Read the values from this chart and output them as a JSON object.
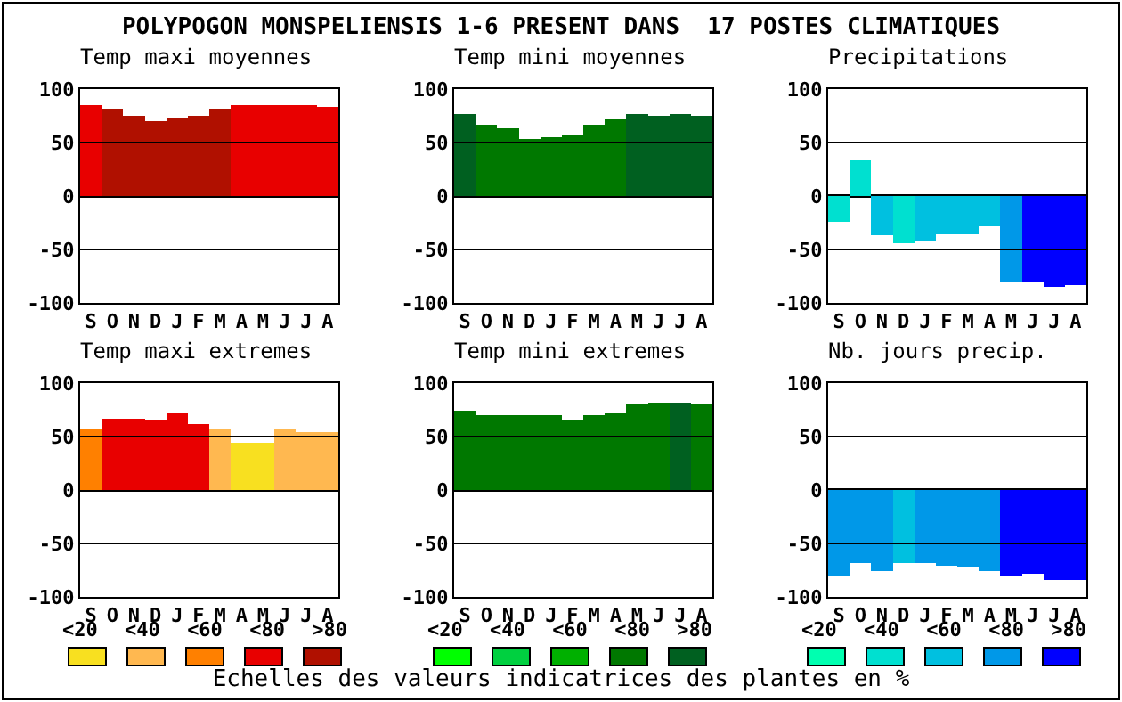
{
  "chart_data": [
    {
      "type": "bar",
      "title": "Temp maxi moyennes",
      "categories": [
        "S",
        "O",
        "N",
        "D",
        "J",
        "F",
        "M",
        "A",
        "M",
        "J",
        "J",
        "A"
      ],
      "values": [
        85,
        82,
        75,
        70,
        73,
        75,
        82,
        85,
        85,
        85,
        85,
        83
      ],
      "colors": [
        "#e80000",
        "#b01000",
        "#b01000",
        "#b01000",
        "#b01000",
        "#b01000",
        "#b01000",
        "#e80000",
        "#e80000",
        "#e80000",
        "#e80000",
        "#e80000"
      ],
      "ylim": [
        -100,
        100
      ],
      "yticks": [
        -100,
        -50,
        0,
        50,
        100
      ],
      "ref_lines": [
        {
          "axis": "y",
          "value": 50
        },
        {
          "axis": "y",
          "value": -50
        }
      ]
    },
    {
      "type": "bar",
      "title": "Temp mini moyennes",
      "categories": [
        "S",
        "O",
        "N",
        "D",
        "J",
        "F",
        "M",
        "A",
        "M",
        "J",
        "J",
        "A"
      ],
      "values": [
        77,
        67,
        63,
        53,
        55,
        57,
        67,
        72,
        77,
        75,
        77,
        75
      ],
      "colors": [
        "#006020",
        "#007800",
        "#007800",
        "#007800",
        "#007800",
        "#007800",
        "#007800",
        "#007800",
        "#006020",
        "#006020",
        "#006020",
        "#006020"
      ],
      "ylim": [
        -100,
        100
      ],
      "yticks": [
        -100,
        -50,
        0,
        50,
        100
      ],
      "ref_lines": [
        {
          "axis": "y",
          "value": 50
        },
        {
          "axis": "y",
          "value": -50
        }
      ]
    },
    {
      "type": "bar",
      "title": "Precipitations",
      "categories": [
        "S",
        "O",
        "N",
        "D",
        "J",
        "F",
        "M",
        "A",
        "M",
        "J",
        "J",
        "A"
      ],
      "values": [
        -24,
        33,
        -37,
        -44,
        -42,
        -36,
        -36,
        -28,
        -81,
        -81,
        -85,
        -83
      ],
      "colors": [
        "#00e0d0",
        "#00e0d0",
        "#00c0e0",
        "#00e0d0",
        "#00c0e0",
        "#00c0e0",
        "#00c0e0",
        "#00c0e0",
        "#0098e8",
        "#0000ff",
        "#0000ff",
        "#0000ff"
      ],
      "ylim": [
        -100,
        100
      ],
      "yticks": [
        -100,
        -50,
        0,
        50,
        100
      ],
      "ref_lines": [
        {
          "axis": "y",
          "value": 50
        },
        {
          "axis": "y",
          "value": -50
        }
      ]
    },
    {
      "type": "bar",
      "title": "Temp maxi extremes",
      "categories": [
        "S",
        "O",
        "N",
        "D",
        "J",
        "F",
        "M",
        "A",
        "M",
        "J",
        "J",
        "A"
      ],
      "values": [
        57,
        67,
        67,
        65,
        72,
        62,
        57,
        44,
        44,
        57,
        54,
        54
      ],
      "colors": [
        "#ff8000",
        "#e80000",
        "#e80000",
        "#e80000",
        "#e80000",
        "#e80000",
        "#ffb850",
        "#f8e020",
        "#f8e020",
        "#ffb850",
        "#ffb850",
        "#ffb850"
      ],
      "ylim": [
        -100,
        100
      ],
      "yticks": [
        -100,
        -50,
        0,
        50,
        100
      ],
      "ref_lines": [
        {
          "axis": "y",
          "value": 50
        },
        {
          "axis": "y",
          "value": -50
        }
      ]
    },
    {
      "type": "bar",
      "title": "Temp mini extremes",
      "categories": [
        "S",
        "O",
        "N",
        "D",
        "J",
        "F",
        "M",
        "A",
        "M",
        "J",
        "J",
        "A"
      ],
      "values": [
        74,
        70,
        70,
        70,
        70,
        65,
        70,
        72,
        80,
        82,
        82,
        80
      ],
      "colors": [
        "#007800",
        "#007800",
        "#007800",
        "#007800",
        "#007800",
        "#007800",
        "#007800",
        "#007800",
        "#007800",
        "#007800",
        "#006020",
        "#007800"
      ],
      "ylim": [
        -100,
        100
      ],
      "yticks": [
        -100,
        -50,
        0,
        50,
        100
      ],
      "ref_lines": [
        {
          "axis": "y",
          "value": 50
        },
        {
          "axis": "y",
          "value": -50
        }
      ]
    },
    {
      "type": "bar",
      "title": "Nb. jours precip.",
      "categories": [
        "S",
        "O",
        "N",
        "D",
        "J",
        "F",
        "M",
        "A",
        "M",
        "J",
        "J",
        "A"
      ],
      "values": [
        -81,
        -68,
        -76,
        -68,
        -68,
        -71,
        -72,
        -76,
        -81,
        -78,
        -84,
        -84
      ],
      "colors": [
        "#0098e8",
        "#0098e8",
        "#0098e8",
        "#00c0e0",
        "#0098e8",
        "#0098e8",
        "#0098e8",
        "#0098e8",
        "#0000ff",
        "#0000ff",
        "#0000ff",
        "#0000ff"
      ],
      "ylim": [
        -100,
        100
      ],
      "yticks": [
        -100,
        -50,
        0,
        50,
        100
      ],
      "ref_lines": [
        {
          "axis": "y",
          "value": 50
        },
        {
          "axis": "y",
          "value": -50
        }
      ]
    },
    {
      "type": "other",
      "title": "POLYPOGON MONSPELIENSIS 1-6 PRESENT DANS  17 POSTES CLIMATIQUES",
      "categories": [
        "<20",
        "<40",
        "<60",
        "<80",
        ">80",
        "<20",
        "<40",
        "<60",
        "<80",
        ">80",
        "<20",
        "<40",
        "<60",
        "<80",
        ">80"
      ],
      "colors": [
        "#f8e020",
        "#ffb850",
        "#ff8000",
        "#e80000",
        "#b01000",
        "#00ff00",
        "#00d040",
        "#00b000",
        "#007800",
        "#006020",
        "#00ffb0",
        "#00e0d0",
        "#00c0e0",
        "#0098e8",
        "#0000ff"
      ],
      "annotations": [
        "Echelles des valeurs indicatrices des plantes en %"
      ]
    }
  ]
}
